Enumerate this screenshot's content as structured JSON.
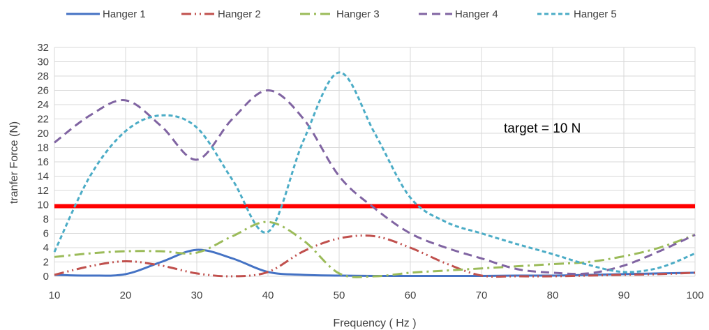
{
  "chart_data": {
    "type": "line",
    "title": "",
    "xlabel": "Frequency ( Hz )",
    "ylabel": "tranfer Force (N)",
    "xlim": [
      10,
      100
    ],
    "ylim": [
      0,
      32
    ],
    "xticks": [
      10,
      20,
      30,
      40,
      50,
      60,
      70,
      80,
      90,
      100
    ],
    "yticks": [
      0,
      2,
      4,
      6,
      8,
      10,
      12,
      14,
      16,
      18,
      20,
      22,
      24,
      26,
      28,
      30,
      32
    ],
    "grid": true,
    "legend_position": "top",
    "annotation": "target = 10 N",
    "target_line": {
      "y": 9.8,
      "color": "#ff0000"
    },
    "series": [
      {
        "name": "Hanger 1",
        "color": "#4472c4",
        "dash": "solid",
        "x": [
          10,
          15,
          20,
          25,
          30,
          35,
          40,
          45,
          50,
          55,
          60,
          65,
          70,
          75,
          80,
          85,
          90,
          95,
          100
        ],
        "y": [
          0.2,
          0.1,
          0.3,
          2.0,
          3.7,
          2.5,
          0.6,
          0.2,
          0.1,
          0.05,
          0.05,
          0.05,
          0.05,
          0.1,
          0.1,
          0.2,
          0.3,
          0.4,
          0.5
        ]
      },
      {
        "name": "Hanger 2",
        "color": "#c0504d",
        "dash": "dash-dot-dot",
        "x": [
          10,
          15,
          20,
          25,
          30,
          35,
          40,
          45,
          50,
          55,
          60,
          65,
          70,
          75,
          80,
          85,
          90,
          95,
          100
        ],
        "y": [
          0.2,
          1.4,
          2.1,
          1.5,
          0.4,
          0.0,
          0.6,
          3.5,
          5.3,
          5.6,
          4.0,
          1.8,
          0.1,
          0.0,
          0.0,
          0.1,
          0.2,
          0.3,
          0.5
        ]
      },
      {
        "name": "Hanger 3",
        "color": "#9bbb59",
        "dash": "dash-dot",
        "x": [
          10,
          15,
          20,
          25,
          30,
          35,
          40,
          45,
          50,
          55,
          60,
          65,
          70,
          75,
          80,
          85,
          90,
          95,
          100
        ],
        "y": [
          2.7,
          3.2,
          3.5,
          3.5,
          3.3,
          5.6,
          7.6,
          5.0,
          0.4,
          0.0,
          0.5,
          0.8,
          1.1,
          1.4,
          1.7,
          2.0,
          2.8,
          4.0,
          5.8
        ]
      },
      {
        "name": "Hanger 4",
        "color": "#8064a2",
        "dash": "dash",
        "x": [
          10,
          15,
          20,
          25,
          30,
          35,
          40,
          45,
          50,
          55,
          60,
          65,
          70,
          75,
          80,
          85,
          90,
          95,
          100
        ],
        "y": [
          18.7,
          22.5,
          24.6,
          21.0,
          16.3,
          22.0,
          26.0,
          22.0,
          14.0,
          9.5,
          6.0,
          4.0,
          2.5,
          1.0,
          0.5,
          0.4,
          1.5,
          3.5,
          5.8
        ]
      },
      {
        "name": "Hanger 5",
        "color": "#4bacc6",
        "dash": "short-dash",
        "x": [
          10,
          15,
          20,
          25,
          30,
          35,
          40,
          45,
          50,
          55,
          60,
          65,
          70,
          75,
          80,
          85,
          90,
          95,
          100
        ],
        "y": [
          3.4,
          14.0,
          20.3,
          22.5,
          20.8,
          13.5,
          6.2,
          19.0,
          28.5,
          20.0,
          11.0,
          7.6,
          6.0,
          4.5,
          3.1,
          1.6,
          0.6,
          1.2,
          3.2
        ]
      }
    ]
  }
}
